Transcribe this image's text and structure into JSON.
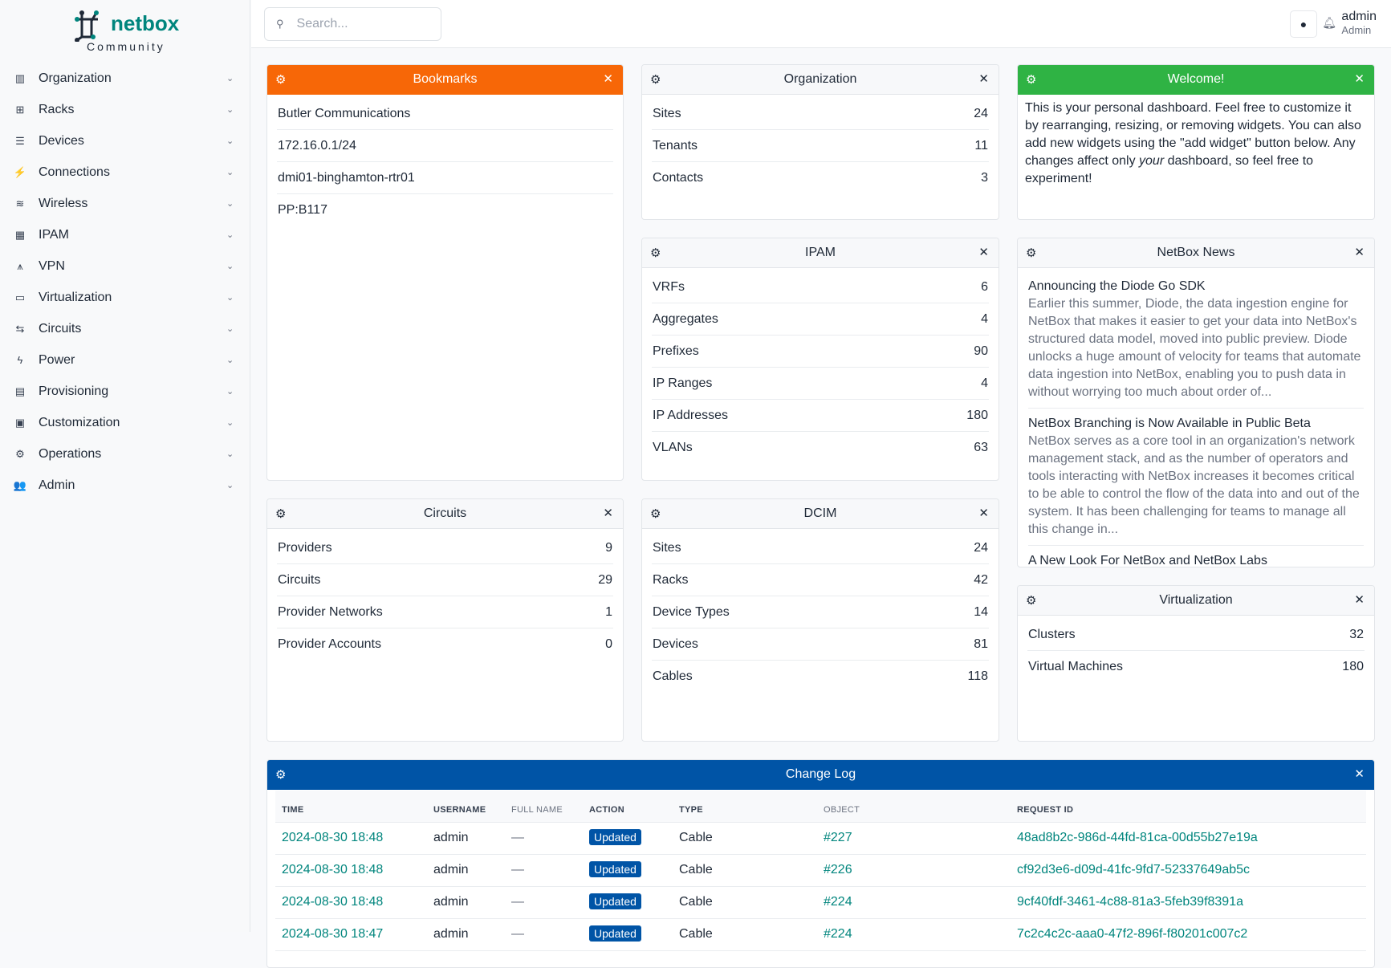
{
  "brand": {
    "name": "netbox",
    "edition": "Community",
    "color": "#00857d"
  },
  "sidebar": {
    "items": [
      {
        "label": "Organization",
        "icon": "building-icon"
      },
      {
        "label": "Racks",
        "icon": "rack-icon"
      },
      {
        "label": "Devices",
        "icon": "server-icon"
      },
      {
        "label": "Connections",
        "icon": "plug-icon"
      },
      {
        "label": "Wireless",
        "icon": "wifi-icon"
      },
      {
        "label": "IPAM",
        "icon": "ip-icon"
      },
      {
        "label": "VPN",
        "icon": "vpn-icon"
      },
      {
        "label": "Virtualization",
        "icon": "monitor-icon"
      },
      {
        "label": "Circuits",
        "icon": "circuit-icon"
      },
      {
        "label": "Power",
        "icon": "bolt-icon"
      },
      {
        "label": "Provisioning",
        "icon": "file-icon"
      },
      {
        "label": "Customization",
        "icon": "toolbox-icon"
      },
      {
        "label": "Operations",
        "icon": "cogs-icon"
      },
      {
        "label": "Admin",
        "icon": "users-icon"
      }
    ]
  },
  "header": {
    "search_placeholder": "Search...",
    "user": {
      "name": "admin",
      "role": "Admin"
    }
  },
  "widgets": {
    "bookmarks": {
      "title": "Bookmarks",
      "color": "#f76707",
      "items": [
        "Butler Communications",
        "172.16.0.1/24",
        "dmi01-binghamton-rtr01",
        "PP:B117"
      ]
    },
    "organization": {
      "title": "Organization",
      "rows": [
        {
          "label": "Sites",
          "value": "24"
        },
        {
          "label": "Tenants",
          "value": "11"
        },
        {
          "label": "Contacts",
          "value": "3"
        }
      ]
    },
    "welcome": {
      "title": "Welcome!",
      "color": "#2fb344",
      "text_before": "This is your personal dashboard. Feel free to customize it by rearranging, resizing, or removing widgets. You can also add new widgets using the \"add widget\" button below. Any changes affect only ",
      "text_em": "your",
      "text_after": " dashboard, so feel free to experiment!"
    },
    "ipam": {
      "title": "IPAM",
      "rows": [
        {
          "label": "VRFs",
          "value": "6"
        },
        {
          "label": "Aggregates",
          "value": "4"
        },
        {
          "label": "Prefixes",
          "value": "90"
        },
        {
          "label": "IP Ranges",
          "value": "4"
        },
        {
          "label": "IP Addresses",
          "value": "180"
        },
        {
          "label": "VLANs",
          "value": "63"
        }
      ]
    },
    "news": {
      "title": "NetBox News",
      "items": [
        {
          "title": "Announcing the Diode Go SDK",
          "desc": "Earlier this summer, Diode, the data ingestion engine for NetBox that makes it easier to get your data into NetBox's structured data model, moved into public preview. Diode unlocks a huge amount of velocity for teams that automate data ingestion into NetBox, enabling you to push data in without worrying too much about order of..."
        },
        {
          "title": "NetBox Branching is Now Available in Public Beta",
          "desc": "NetBox serves as a core tool in an organization's network management stack, and as the number of operators and tools interacting with NetBox increases it becomes critical to be able to control the flow of the data into and out of the system. It has been challenging for teams to manage all this change in..."
        },
        {
          "title": "A New Look For NetBox and NetBox Labs",
          "desc": ""
        }
      ]
    },
    "circuits": {
      "title": "Circuits",
      "rows": [
        {
          "label": "Providers",
          "value": "9"
        },
        {
          "label": "Circuits",
          "value": "29"
        },
        {
          "label": "Provider Networks",
          "value": "1"
        },
        {
          "label": "Provider Accounts",
          "value": "0"
        }
      ]
    },
    "dcim": {
      "title": "DCIM",
      "rows": [
        {
          "label": "Sites",
          "value": "24"
        },
        {
          "label": "Racks",
          "value": "42"
        },
        {
          "label": "Device Types",
          "value": "14"
        },
        {
          "label": "Devices",
          "value": "81"
        },
        {
          "label": "Cables",
          "value": "118"
        }
      ]
    },
    "virtualization": {
      "title": "Virtualization",
      "rows": [
        {
          "label": "Clusters",
          "value": "32"
        },
        {
          "label": "Virtual Machines",
          "value": "180"
        }
      ]
    },
    "changelog": {
      "title": "Change Log",
      "color": "#0054a6",
      "columns": [
        "TIME",
        "USERNAME",
        "FULL NAME",
        "ACTION",
        "TYPE",
        "OBJECT",
        "REQUEST ID"
      ],
      "rows": [
        {
          "time": "2024-08-30 18:48",
          "username": "admin",
          "full_name": "—",
          "action": "Updated",
          "type": "Cable",
          "object": "#227",
          "request_id": "48ad8b2c-986d-44fd-81ca-00d55b27e19a"
        },
        {
          "time": "2024-08-30 18:48",
          "username": "admin",
          "full_name": "—",
          "action": "Updated",
          "type": "Cable",
          "object": "#226",
          "request_id": "cf92d3e6-d09d-41fc-9fd7-52337649ab5c"
        },
        {
          "time": "2024-08-30 18:48",
          "username": "admin",
          "full_name": "—",
          "action": "Updated",
          "type": "Cable",
          "object": "#224",
          "request_id": "9cf40fdf-3461-4c88-81a3-5feb39f8391a"
        },
        {
          "time": "2024-08-30 18:47",
          "username": "admin",
          "full_name": "—",
          "action": "Updated",
          "type": "Cable",
          "object": "#224",
          "request_id": "7c2c4c2c-aaa0-47f2-896f-f80201c007c2"
        }
      ]
    }
  }
}
